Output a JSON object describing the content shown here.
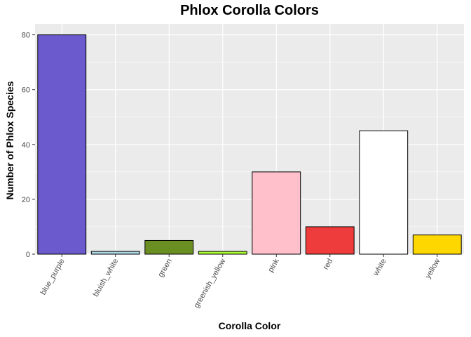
{
  "chart_data": {
    "type": "bar",
    "title": "Phlox Corolla Colors",
    "xlabel": "Corolla Color",
    "ylabel": "Number of Phlox Species",
    "categories": [
      "blue_purple",
      "bluish_white",
      "green",
      "greenish_yellow",
      "pink",
      "red",
      "white",
      "yellow"
    ],
    "values": [
      80,
      1,
      5,
      1,
      30,
      10,
      45,
      7
    ],
    "bar_colors": [
      "#6A5ACD",
      "#ADD8E6",
      "#6B8E23",
      "#ADFF2F",
      "#FFC0CB",
      "#EE3B3B",
      "#FFFFFF",
      "#FFD700"
    ],
    "ylim": [
      0,
      84
    ],
    "yticks": [
      0,
      20,
      40,
      60,
      80
    ],
    "grid": true,
    "panel_color": "#EBEBEB"
  }
}
